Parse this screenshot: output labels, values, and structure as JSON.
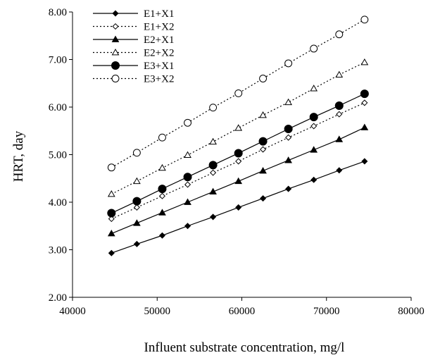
{
  "chart_data": {
    "type": "line",
    "title": "",
    "xlabel": "Influent substrate concentration, mg/l",
    "ylabel": "HRT, day",
    "xlim": [
      40000,
      80000
    ],
    "ylim": [
      2.0,
      8.0
    ],
    "x_ticks": [
      40000,
      50000,
      60000,
      70000,
      80000
    ],
    "y_ticks": [
      2.0,
      3.0,
      4.0,
      5.0,
      6.0,
      7.0,
      8.0
    ],
    "y_tick_labels": [
      "2.00",
      "3.00",
      "4.00",
      "5.00",
      "6.00",
      "7.00",
      "8.00"
    ],
    "x_tick_labels": [
      "40000",
      "50000",
      "60000",
      "70000",
      "80000"
    ],
    "grid": false,
    "legend_position": "top-left",
    "x": [
      44600,
      47600,
      50600,
      53600,
      56600,
      59600,
      62500,
      65500,
      68500,
      71500,
      74500
    ],
    "series": [
      {
        "name": "E1+X1",
        "line": "solid",
        "marker": "diamond",
        "filled": true,
        "values": [
          2.93,
          3.12,
          3.3,
          3.5,
          3.69,
          3.89,
          4.08,
          4.28,
          4.47,
          4.67,
          4.86
        ]
      },
      {
        "name": "E1+X2",
        "line": "dotted",
        "marker": "diamond",
        "filled": false,
        "values": [
          3.65,
          3.89,
          4.13,
          4.37,
          4.62,
          4.86,
          5.11,
          5.36,
          5.6,
          5.85,
          6.09
        ]
      },
      {
        "name": "E2+X1",
        "line": "solid",
        "marker": "triangle",
        "filled": true,
        "values": [
          3.34,
          3.56,
          3.78,
          4.0,
          4.22,
          4.44,
          4.66,
          4.88,
          5.1,
          5.32,
          5.57
        ]
      },
      {
        "name": "E2+X2",
        "line": "dotted",
        "marker": "triangle",
        "filled": false,
        "values": [
          4.17,
          4.44,
          4.72,
          4.99,
          5.27,
          5.56,
          5.83,
          6.1,
          6.39,
          6.68,
          6.94
        ]
      },
      {
        "name": "E3+X1",
        "line": "solid",
        "marker": "circle",
        "filled": true,
        "values": [
          3.77,
          4.02,
          4.28,
          4.53,
          4.78,
          5.03,
          5.28,
          5.54,
          5.79,
          6.03,
          6.28
        ]
      },
      {
        "name": "E3+X2",
        "line": "dotted",
        "marker": "circle",
        "filled": false,
        "values": [
          4.73,
          5.04,
          5.36,
          5.67,
          5.99,
          6.29,
          6.6,
          6.92,
          7.23,
          7.53,
          7.84
        ]
      }
    ]
  }
}
